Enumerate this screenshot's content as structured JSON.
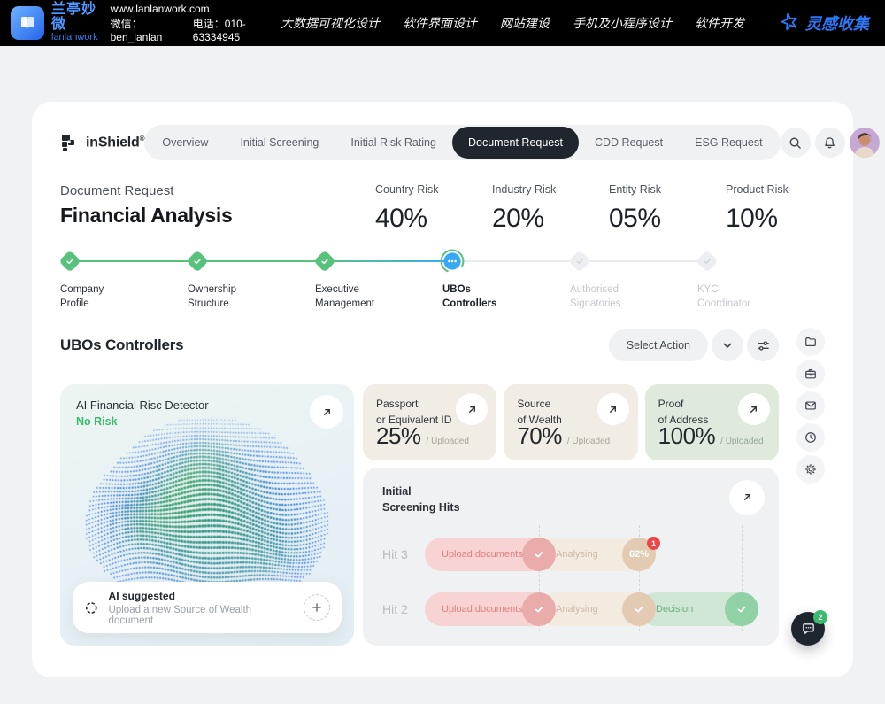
{
  "topbar": {
    "brand_cn": "兰亭妙微",
    "brand_en": "lanlanwork",
    "website": "www.lanlanwork.com",
    "wechat": "微信：ben_lanlan",
    "phone": "电话：010-63334945",
    "menu": [
      "大数据可视化设计",
      "软件界面设计",
      "网站建设",
      "手机及小程序设计",
      "软件开发"
    ],
    "collect_label": "灵感收集"
  },
  "nav": {
    "brand": "inShield",
    "brand_mark": "®",
    "tabs": [
      {
        "label": "Overview",
        "active": false
      },
      {
        "label": "Initial Screening",
        "active": false
      },
      {
        "label": "Initial Risk Rating",
        "active": false
      },
      {
        "label": "Document Request",
        "active": true
      },
      {
        "label": "CDD Request",
        "active": false
      },
      {
        "label": "ESG Request",
        "active": false
      }
    ]
  },
  "header": {
    "breadcrumb": "Document Request",
    "title": "Financial Analysis",
    "stats": [
      {
        "label": "Country Risk",
        "value": "40%"
      },
      {
        "label": "Industry Risk",
        "value": "20%"
      },
      {
        "label": "Entity Risk",
        "value": "05%"
      },
      {
        "label": "Product Risk",
        "value": "10%"
      }
    ]
  },
  "stepper": {
    "steps": [
      {
        "line1": "Company",
        "line2": "Profile",
        "state": "done"
      },
      {
        "line1": "Ownership",
        "line2": "Structure",
        "state": "done"
      },
      {
        "line1": "Executive",
        "line2": "Management",
        "state": "done"
      },
      {
        "line1": "UBOs",
        "line2": "Controllers",
        "state": "current"
      },
      {
        "line1": "Authorised",
        "line2": "Signatories",
        "state": "pending"
      },
      {
        "line1": "KYC",
        "line2": "Coordinator",
        "state": "pending"
      }
    ]
  },
  "section": {
    "title": "UBOs Controllers",
    "action_label": "Select Action"
  },
  "ai_card": {
    "title": "AI Financial Risc Detector",
    "status": "No Risk",
    "suggested_title": "AI suggested",
    "suggested_text": "Upload a new Source of Wealth document"
  },
  "doc_cards": [
    {
      "line1": "Passport",
      "line2": "or Equivalent ID",
      "value": "25%",
      "suffix": "/ Uploaded"
    },
    {
      "line1": "Source",
      "line2": "of Wealth",
      "value": "70%",
      "suffix": "/ Uploaded"
    },
    {
      "line1": "Proof",
      "line2": "of Address",
      "value": "100%",
      "suffix": "/ Uploaded"
    }
  ],
  "screening": {
    "title_line1": "Initial",
    "title_line2": "Screening Hits",
    "rows": [
      {
        "label": "Hit 3",
        "stages": [
          {
            "label": "Upload documents",
            "end": "check"
          },
          {
            "label": "Analysing",
            "end_label": "62%",
            "badge": "1"
          }
        ]
      },
      {
        "label": "Hit 2",
        "stages": [
          {
            "label": "Upload documents",
            "end": "check"
          },
          {
            "label": "Analysing",
            "end": "check"
          },
          {
            "label": "Decision",
            "end": "check"
          }
        ]
      }
    ]
  },
  "chat": {
    "badge": "2"
  },
  "icons": {
    "search": "magnifier",
    "bell": "notification",
    "chevron_down": "chevron",
    "filters": "sliders",
    "folder": "folder",
    "archive": "briefcase",
    "mail": "envelope",
    "clock": "clock",
    "settings": "gear",
    "expand": "arrow-up-right",
    "add": "plus",
    "ai": "dotted-ring",
    "chat": "speech-bubble",
    "collect": "sparkle-star",
    "check": "checkmark"
  },
  "colors": {
    "accent_blue": "#2e77f6",
    "step_green": "#58c27d",
    "step_current_blue": "#38a8f5",
    "pink_bar": "#f8d3d3",
    "beige_bar": "#f3eae0",
    "green_bar": "#cfe7d4",
    "card_beige": "#f2ede4",
    "card_green": "#dfeadd",
    "dark": "#20262e",
    "red_badge": "#ef4444"
  }
}
